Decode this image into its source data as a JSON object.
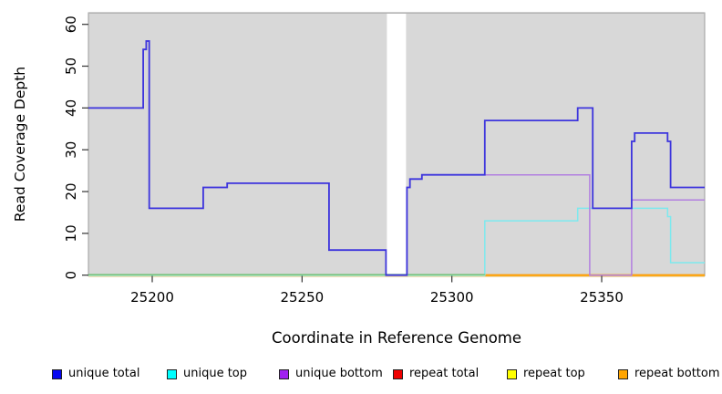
{
  "chart_data": {
    "type": "line",
    "step": true,
    "title": "",
    "xlabel": "Coordinate in Reference Genome",
    "ylabel": "Read Coverage Depth",
    "xlim": [
      25178.7,
      25384.4
    ],
    "ylim": [
      0,
      63
    ],
    "xticks": [
      25200,
      25250,
      25300,
      25350
    ],
    "yticks": [
      0,
      10,
      20,
      30,
      40,
      50,
      60
    ],
    "grid": false,
    "legend_position": "bottom",
    "panel_bg": "#d8d8d8",
    "gap_band": {
      "x1": 25278.3,
      "x2": 25284.7,
      "color": "#ffffff"
    },
    "zero_overlap_line": {
      "x1": 25178.7,
      "x2": 25311,
      "green": "#79c47e",
      "yellow": "#e9e5a2"
    },
    "series": [
      {
        "name": "unique total",
        "line_color": "#3d35dd",
        "legend_color": "#0808f0",
        "points": [
          [
            25178.7,
            40
          ],
          [
            25197,
            54
          ],
          [
            25198,
            56
          ],
          [
            25199,
            16
          ],
          [
            25217,
            21
          ],
          [
            25225,
            22
          ],
          [
            25259,
            6
          ],
          [
            25278,
            0
          ],
          [
            25285,
            21
          ],
          [
            25286,
            23
          ],
          [
            25290,
            24
          ],
          [
            25311,
            37
          ],
          [
            25342,
            40
          ],
          [
            25347,
            16
          ],
          [
            25360,
            32
          ],
          [
            25361,
            34
          ],
          [
            25372,
            32
          ],
          [
            25373,
            21
          ]
        ]
      },
      {
        "name": "unique top",
        "line_color": "#7de9ee",
        "legend_color": "#00ffff",
        "points": [
          [
            25178.7,
            0
          ],
          [
            25311,
            13
          ],
          [
            25342,
            16
          ],
          [
            25372,
            14
          ],
          [
            25373,
            3
          ]
        ]
      },
      {
        "name": "unique bottom",
        "line_color": "#b27fe0",
        "legend_color": "#a020f0",
        "points": [
          [
            25178.7,
            40
          ],
          [
            25197,
            54
          ],
          [
            25198,
            56
          ],
          [
            25199,
            16
          ],
          [
            25217,
            21
          ],
          [
            25225,
            22
          ],
          [
            25259,
            6
          ],
          [
            25278,
            0
          ],
          [
            25285,
            21
          ],
          [
            25286,
            23
          ],
          [
            25290,
            24
          ],
          [
            25346,
            0
          ],
          [
            25360,
            18
          ]
        ]
      },
      {
        "name": "repeat total",
        "line_color": "#dd2222",
        "legend_color": "#ee0000",
        "points": [
          [
            25178.7,
            0
          ]
        ]
      },
      {
        "name": "repeat top",
        "line_color": "#e9e5a2",
        "legend_color": "#ffff00",
        "points": [
          [
            25178.7,
            0
          ]
        ]
      },
      {
        "name": "repeat bottom",
        "line_color": "#ff9d00",
        "legend_color": "#ffa500",
        "points": [
          [
            25311,
            0
          ]
        ]
      }
    ]
  }
}
